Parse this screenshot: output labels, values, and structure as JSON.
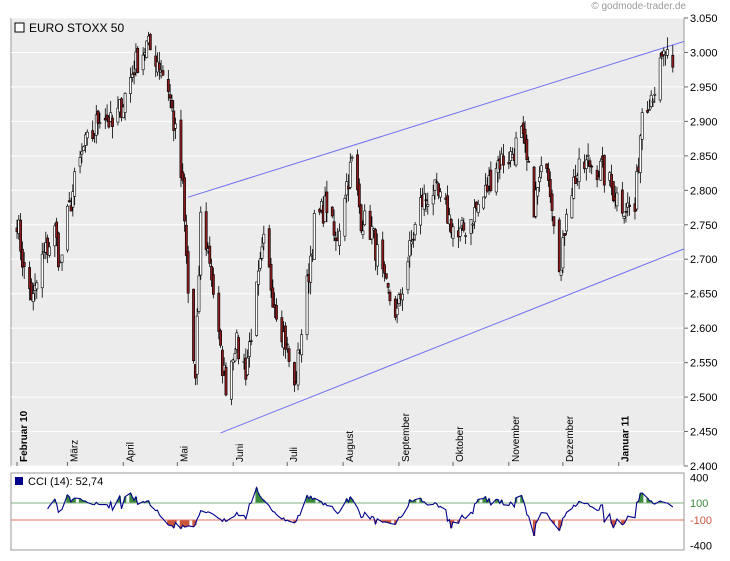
{
  "watermark": "godmode-trader.de",
  "colors": {
    "panel_bg": "#ececec",
    "grid": "#ffffff",
    "up_fill": "#ffffff",
    "down_fill": "#8b1a1a",
    "candle_outline": "#000000",
    "trendline": "#6f6ff2",
    "cci_line": "#00008b",
    "cci_pos_fill": "#3c8b3c",
    "cci_neg_fill": "#c8553c",
    "cci_upper_line": "#7fb27f",
    "cci_lower_line": "#e07060"
  },
  "chart_data": [
    {
      "type": "candlestick",
      "title": "EURO STOXX 50",
      "ylim": [
        2400,
        3050
      ],
      "y_ticks": [
        "3.050",
        "3.000",
        "2.950",
        "2.900",
        "2.850",
        "2.800",
        "2.750",
        "2.700",
        "2.650",
        "2.600",
        "2.550",
        "2.500",
        "2.450",
        "2.400"
      ],
      "y_tick_values": [
        3050,
        3000,
        2950,
        2900,
        2850,
        2800,
        2750,
        2700,
        2650,
        2600,
        2550,
        2500,
        2450,
        2400
      ],
      "months": [
        "Februar 10",
        "März",
        "April",
        "Mai",
        "Juni",
        "Juli",
        "August",
        "September",
        "Oktober",
        "November",
        "Dezember",
        "Januar 11"
      ],
      "month_bold": [
        true,
        false,
        false,
        false,
        false,
        false,
        false,
        false,
        false,
        false,
        false,
        true
      ],
      "close_path": [
        [
          "2010-02-01",
          2760
        ],
        [
          "2010-02-05",
          2680
        ],
        [
          "2010-02-10",
          2640
        ],
        [
          "2010-02-15",
          2700
        ],
        [
          "2010-02-22",
          2740
        ],
        [
          "2010-02-25",
          2690
        ],
        [
          "2010-03-01",
          2760
        ],
        [
          "2010-03-05",
          2810
        ],
        [
          "2010-03-10",
          2860
        ],
        [
          "2010-03-15",
          2880
        ],
        [
          "2010-03-20",
          2920
        ],
        [
          "2010-03-26",
          2890
        ],
        [
          "2010-04-01",
          2930
        ],
        [
          "2010-04-07",
          2980
        ],
        [
          "2010-04-14",
          3010
        ],
        [
          "2010-04-20",
          2990
        ],
        [
          "2010-04-26",
          2950
        ],
        [
          "2010-04-30",
          2880
        ],
        [
          "2010-05-04",
          2800
        ],
        [
          "2010-05-07",
          2650
        ],
        [
          "2010-05-11",
          2520
        ],
        [
          "2010-05-14",
          2760
        ],
        [
          "2010-05-19",
          2700
        ],
        [
          "2010-05-25",
          2560
        ],
        [
          "2010-05-28",
          2520
        ],
        [
          "2010-06-02",
          2580
        ],
        [
          "2010-06-08",
          2540
        ],
        [
          "2010-06-14",
          2650
        ],
        [
          "2010-06-18",
          2720
        ],
        [
          "2010-06-23",
          2650
        ],
        [
          "2010-06-30",
          2580
        ],
        [
          "2010-07-05",
          2510
        ],
        [
          "2010-07-12",
          2660
        ],
        [
          "2010-07-16",
          2750
        ],
        [
          "2010-07-23",
          2780
        ],
        [
          "2010-07-28",
          2720
        ],
        [
          "2010-08-02",
          2800
        ],
        [
          "2010-08-06",
          2840
        ],
        [
          "2010-08-11",
          2760
        ],
        [
          "2010-08-17",
          2740
        ],
        [
          "2010-08-24",
          2660
        ],
        [
          "2010-08-31",
          2620
        ],
        [
          "2010-09-06",
          2700
        ],
        [
          "2010-09-13",
          2780
        ],
        [
          "2010-09-20",
          2800
        ],
        [
          "2010-09-27",
          2770
        ],
        [
          "2010-10-04",
          2730
        ],
        [
          "2010-10-11",
          2760
        ],
        [
          "2010-10-18",
          2790
        ],
        [
          "2010-10-25",
          2840
        ],
        [
          "2010-11-02",
          2850
        ],
        [
          "2010-11-08",
          2880
        ],
        [
          "2010-11-15",
          2780
        ],
        [
          "2010-11-22",
          2850
        ],
        [
          "2010-11-30",
          2680
        ],
        [
          "2010-12-03",
          2780
        ],
        [
          "2010-12-08",
          2820
        ],
        [
          "2010-12-15",
          2840
        ],
        [
          "2010-12-22",
          2830
        ],
        [
          "2010-12-29",
          2800
        ],
        [
          "2011-01-03",
          2780
        ],
        [
          "2011-01-10",
          2770
        ],
        [
          "2011-01-14",
          2920
        ],
        [
          "2011-01-21",
          2950
        ],
        [
          "2011-01-27",
          3000
        ],
        [
          "2011-01-31",
          2960
        ]
      ]
    },
    {
      "type": "line",
      "title": "CCI (14): 52,74",
      "ylim": [
        -450,
        450
      ],
      "y_ticks": [
        "400",
        "100",
        "-100",
        "-400"
      ],
      "y_tick_values": [
        400,
        100,
        -100,
        -400
      ],
      "reference_lines": [
        100,
        -100
      ]
    }
  ]
}
